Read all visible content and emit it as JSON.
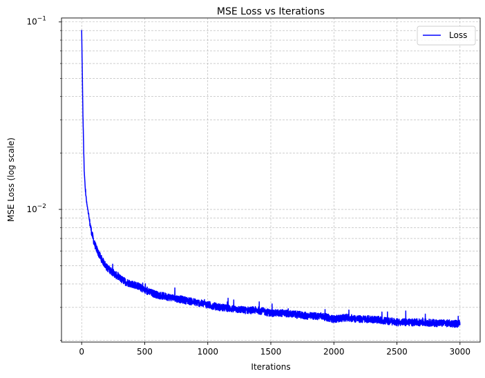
{
  "chart_data": {
    "type": "line",
    "title": "MSE Loss vs Iterations",
    "xlabel": "Iterations",
    "ylabel": "MSE Loss (log scale)",
    "xlim": [
      -160,
      3160
    ],
    "ylim": [
      0.00196,
      0.105
    ],
    "yscale": "log",
    "grid": "both",
    "x_ticks": [
      0,
      500,
      1000,
      1500,
      2000,
      2500,
      3000
    ],
    "x_tick_labels": [
      "0",
      "500",
      "1000",
      "1500",
      "2000",
      "2500",
      "3000"
    ],
    "y_major_ticks": [
      0.01,
      0.1
    ],
    "y_major_labels": [
      "10",
      "10"
    ],
    "y_major_exponents": [
      "−2",
      "−1"
    ],
    "y_minor_ticks": [
      0.002,
      0.003,
      0.004,
      0.005,
      0.006,
      0.007,
      0.008,
      0.009,
      0.02,
      0.03,
      0.04,
      0.05,
      0.06,
      0.07,
      0.08,
      0.09
    ],
    "legend": {
      "position": "top-right",
      "entries": [
        "Loss"
      ]
    },
    "series": [
      {
        "name": "Loss",
        "color": "#0000ff",
        "x": [
          0,
          10,
          20,
          30,
          40,
          50,
          60,
          80,
          100,
          130,
          160,
          200,
          250,
          300,
          350,
          400,
          450,
          500,
          600,
          700,
          800,
          900,
          1000,
          1100,
          1200,
          1300,
          1400,
          1500,
          1600,
          1700,
          1800,
          1900,
          2000,
          2100,
          2200,
          2300,
          2400,
          2500,
          2600,
          2700,
          2800,
          2900,
          3000
        ],
        "values": [
          0.09,
          0.032,
          0.016,
          0.0125,
          0.0108,
          0.0098,
          0.0088,
          0.0075,
          0.0066,
          0.0059,
          0.0054,
          0.0049,
          0.0046,
          0.0043,
          0.0041,
          0.004,
          0.0039,
          0.0037,
          0.0035,
          0.0034,
          0.0033,
          0.0032,
          0.0031,
          0.003,
          0.00295,
          0.0029,
          0.0029,
          0.0028,
          0.0028,
          0.00275,
          0.0027,
          0.0027,
          0.0026,
          0.00265,
          0.0026,
          0.0026,
          0.00255,
          0.0025,
          0.0025,
          0.0025,
          0.00248,
          0.00247,
          0.00245
        ]
      }
    ]
  }
}
